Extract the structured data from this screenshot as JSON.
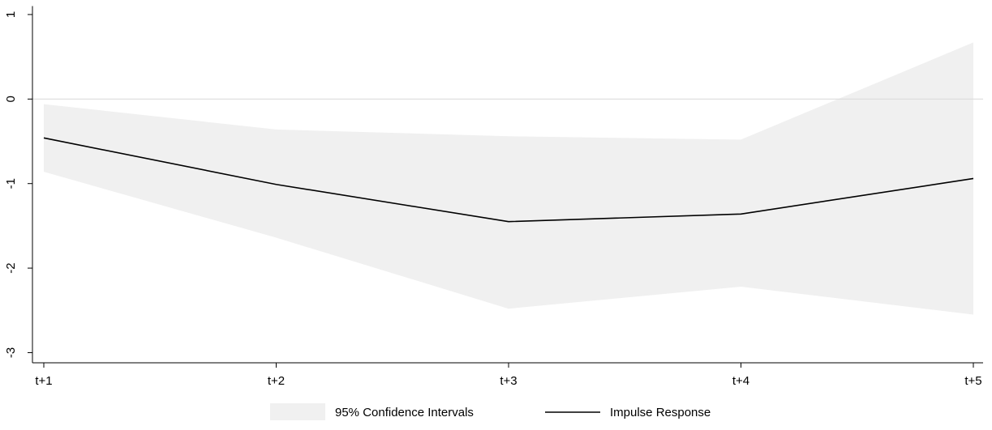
{
  "chart_data": {
    "type": "line",
    "categories": [
      "t+1",
      "t+2",
      "t+3",
      "t+4",
      "t+5"
    ],
    "band": {
      "name": "95% Confidence Intervals",
      "color": "#f0f0f0",
      "lower": [
        -0.86,
        -1.64,
        -2.48,
        -2.22,
        -2.55
      ],
      "upper": [
        -0.06,
        -0.36,
        -0.44,
        -0.48,
        0.67
      ]
    },
    "series": [
      {
        "name": "Impulse Response",
        "color": "#000000",
        "values": [
          -0.46,
          -1.01,
          -1.45,
          -1.36,
          -0.94
        ]
      }
    ],
    "ylim": [
      -3.12,
      1.1
    ],
    "yticks": [
      1,
      0,
      -1,
      -2,
      -3
    ],
    "reference_line": 0,
    "grid": false,
    "legend_position": "bottom"
  }
}
